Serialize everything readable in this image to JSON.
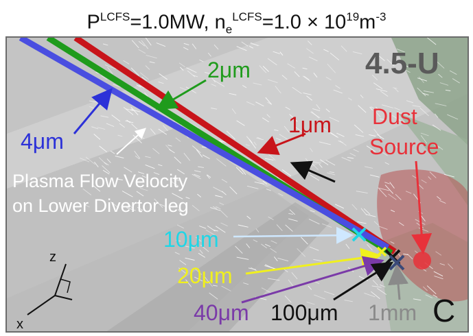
{
  "title": {
    "p_label": "P",
    "p_superscript": "LCFS",
    "p_value": "=1.0MW, n",
    "n_subscript": "e",
    "n_superscript": "LCFS",
    "n_value": "=1.0 × 10",
    "exp_superscript": "19",
    "unit": "m",
    "unit_superscript": "-3"
  },
  "labels": {
    "shot": "4.5-U",
    "dust_source_line1": "Dust",
    "dust_source_line2": "Source",
    "plasma_line1": "Plasma Flow Velocity",
    "plasma_line2": "on Lower Divertor leg",
    "size_1um": "1μm",
    "size_2um": "2μm",
    "size_4um": "4μm",
    "size_10um": "10μm",
    "size_20um": "20μm",
    "size_40um": "40μm",
    "size_100um": "100μm",
    "size_1mm": "1mm",
    "material": "C",
    "axis_z": "z",
    "axis_x": "x"
  },
  "colors": {
    "red": "#c8141a",
    "green": "#1f9b1c",
    "blue": "#4a4ee0",
    "cyan": "#1fd6e6",
    "yellow": "#f0f01e",
    "purple": "#7a3aa8",
    "black": "#111111",
    "gray_label": "#8a8a8a",
    "dust_source": "#e8313a"
  }
}
